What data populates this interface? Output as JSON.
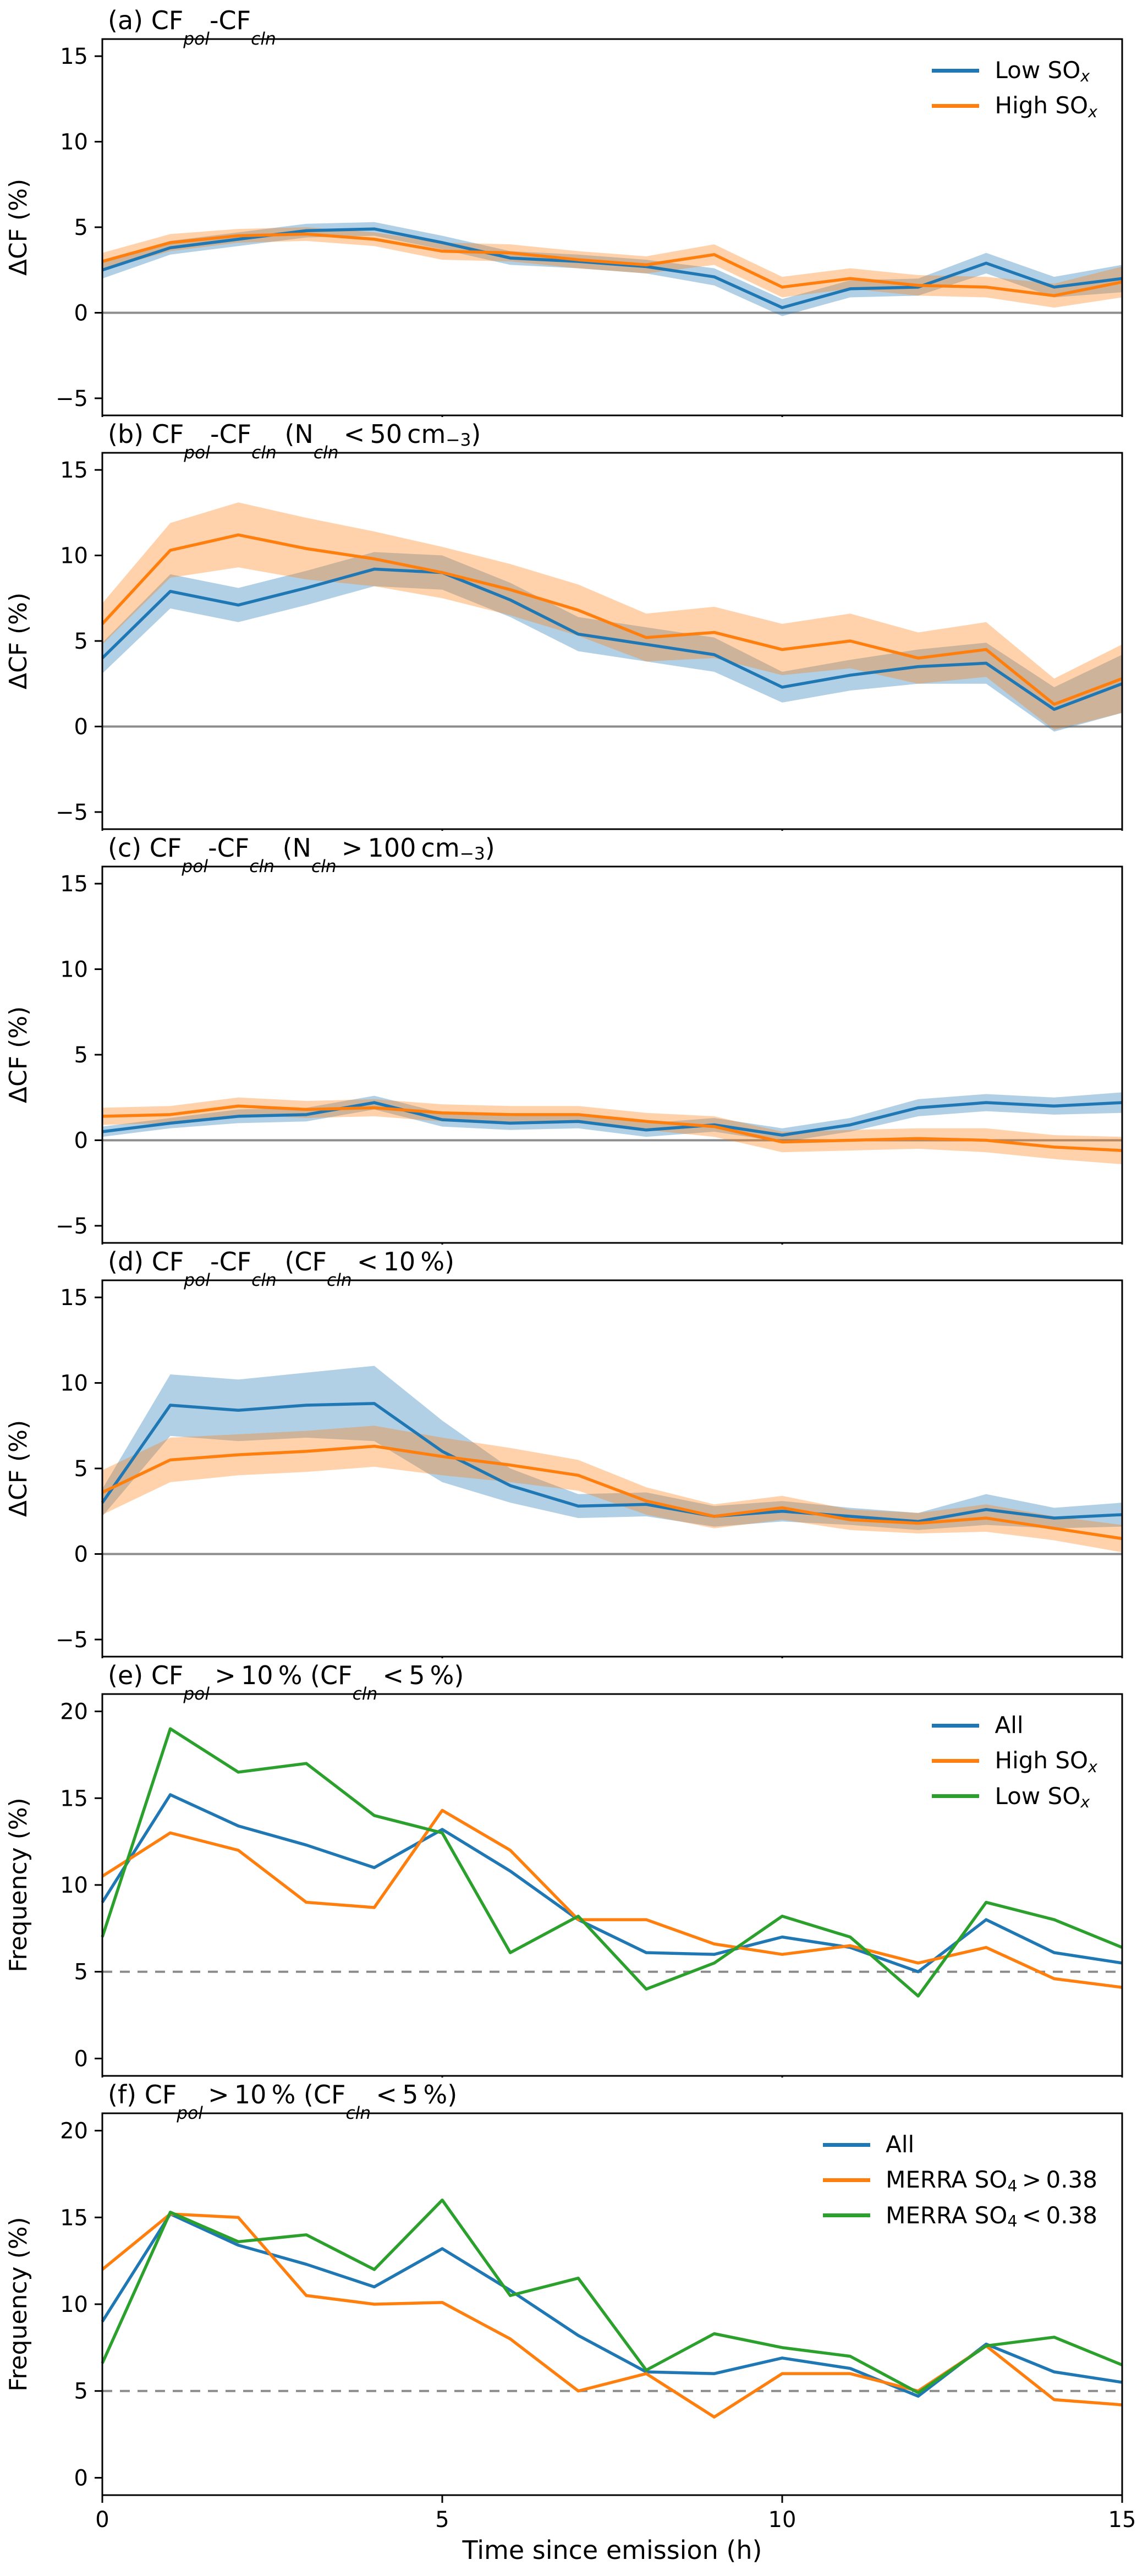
{
  "figure": {
    "xlabel": "Time since emission (h)",
    "x_ticks": [
      0,
      5,
      10,
      15
    ],
    "xlim": [
      0,
      15
    ],
    "x": [
      0,
      1,
      2,
      3,
      4,
      5,
      6,
      7,
      8,
      9,
      10,
      11,
      12,
      13,
      14,
      15
    ],
    "colors": {
      "blue": "#1f77b4",
      "orange": "#ff7f0e",
      "green": "#2ca02c",
      "ref_gray": "#8c8c8c"
    }
  },
  "chart_data": [
    {
      "id": "a",
      "type": "line",
      "title": "(a) CF~pol~-CF~cln~",
      "ylabel": "ΔCF (%)",
      "ylim": [
        -6,
        16
      ],
      "yticks": [
        -5,
        0,
        5,
        10,
        15
      ],
      "ref_line": {
        "y": 0,
        "style": "solid"
      },
      "legend": true,
      "series": [
        {
          "name": "Low SO~x~",
          "color": "#1f77b4",
          "values": [
            2.5,
            3.8,
            4.3,
            4.8,
            4.9,
            4.1,
            3.2,
            3.0,
            2.7,
            2.1,
            0.3,
            1.4,
            1.5,
            2.9,
            1.5,
            2.0
          ],
          "band": [
            0.5,
            0.4,
            0.4,
            0.4,
            0.4,
            0.4,
            0.4,
            0.4,
            0.4,
            0.5,
            0.5,
            0.5,
            0.5,
            0.6,
            0.6,
            0.8
          ]
        },
        {
          "name": "High SO~x~",
          "color": "#ff7f0e",
          "values": [
            3.0,
            4.1,
            4.5,
            4.6,
            4.3,
            3.6,
            3.5,
            3.1,
            2.8,
            3.4,
            1.5,
            2.0,
            1.6,
            1.5,
            1.0,
            1.8
          ],
          "band": [
            0.5,
            0.5,
            0.4,
            0.4,
            0.4,
            0.5,
            0.5,
            0.5,
            0.5,
            0.6,
            0.6,
            0.6,
            0.6,
            0.6,
            0.7,
            0.9
          ]
        }
      ]
    },
    {
      "id": "b",
      "type": "line",
      "title": "(b) CF~pol~-CF~cln~ (N~cln~ < 50 cm^−3^)",
      "ylabel": "ΔCF (%)",
      "ylim": [
        -6,
        16
      ],
      "yticks": [
        -5,
        0,
        5,
        10,
        15
      ],
      "ref_line": {
        "y": 0,
        "style": "solid"
      },
      "legend": false,
      "series": [
        {
          "name": "Low SO~x~",
          "color": "#1f77b4",
          "values": [
            4.0,
            7.9,
            7.1,
            8.1,
            9.2,
            9.0,
            7.4,
            5.4,
            4.8,
            4.2,
            2.3,
            3.0,
            3.5,
            3.7,
            1.0,
            2.5
          ],
          "band": [
            0.9,
            1.0,
            1.0,
            1.0,
            1.0,
            1.0,
            1.0,
            1.0,
            1.0,
            1.0,
            0.9,
            0.9,
            1.0,
            1.2,
            1.3,
            1.7
          ]
        },
        {
          "name": "High SO~x~",
          "color": "#ff7f0e",
          "values": [
            6.0,
            10.3,
            11.2,
            10.4,
            9.8,
            9.0,
            8.0,
            6.8,
            5.2,
            5.5,
            4.5,
            5.0,
            4.0,
            4.5,
            1.3,
            2.8
          ],
          "band": [
            1.2,
            1.6,
            1.9,
            1.8,
            1.6,
            1.5,
            1.5,
            1.5,
            1.4,
            1.5,
            1.5,
            1.6,
            1.5,
            1.6,
            1.5,
            2.0
          ]
        }
      ]
    },
    {
      "id": "c",
      "type": "line",
      "title": "(c) CF~pol~-CF~cln~ (N~cln~ > 100 cm^−3^)",
      "ylabel": "ΔCF (%)",
      "ylim": [
        -6,
        16
      ],
      "yticks": [
        -5,
        0,
        5,
        10,
        15
      ],
      "ref_line": {
        "y": 0,
        "style": "solid"
      },
      "legend": false,
      "series": [
        {
          "name": "Low SO~x~",
          "color": "#1f77b4",
          "values": [
            0.5,
            1.0,
            1.4,
            1.5,
            2.2,
            1.2,
            1.0,
            1.1,
            0.6,
            0.9,
            0.3,
            0.9,
            1.9,
            2.2,
            2.0,
            2.2
          ],
          "band": [
            0.3,
            0.3,
            0.4,
            0.4,
            0.4,
            0.4,
            0.4,
            0.4,
            0.4,
            0.4,
            0.4,
            0.4,
            0.5,
            0.5,
            0.5,
            0.6
          ]
        },
        {
          "name": "High SO~x~",
          "color": "#ff7f0e",
          "values": [
            1.4,
            1.5,
            2.0,
            1.8,
            1.9,
            1.6,
            1.5,
            1.5,
            1.1,
            0.8,
            -0.1,
            0.0,
            0.1,
            0.0,
            -0.4,
            -0.6
          ],
          "band": [
            0.5,
            0.5,
            0.5,
            0.5,
            0.5,
            0.5,
            0.5,
            0.5,
            0.5,
            0.6,
            0.6,
            0.6,
            0.6,
            0.7,
            0.7,
            0.8
          ]
        }
      ]
    },
    {
      "id": "d",
      "type": "line",
      "title": "(d) CF~pol~-CF~cln~ (CF~cln~ < 10 %)",
      "ylabel": "ΔCF (%)",
      "ylim": [
        -6,
        16
      ],
      "yticks": [
        -5,
        0,
        5,
        10,
        15
      ],
      "ref_line": {
        "y": 0,
        "style": "solid"
      },
      "legend": false,
      "series": [
        {
          "name": "Low SO~x~",
          "color": "#1f77b4",
          "values": [
            3.0,
            8.7,
            8.4,
            8.7,
            8.8,
            6.0,
            4.0,
            2.8,
            2.9,
            2.2,
            2.5,
            2.2,
            1.9,
            2.6,
            2.1,
            2.3
          ],
          "band": [
            0.8,
            1.8,
            1.8,
            1.9,
            2.2,
            1.8,
            1.0,
            0.7,
            0.7,
            0.6,
            0.6,
            0.5,
            0.5,
            0.9,
            0.6,
            0.7
          ]
        },
        {
          "name": "High SO~x~",
          "color": "#ff7f0e",
          "values": [
            3.6,
            5.5,
            5.8,
            6.0,
            6.3,
            5.7,
            5.2,
            4.6,
            3.1,
            2.2,
            2.7,
            2.0,
            1.8,
            2.1,
            1.5,
            0.9
          ],
          "band": [
            1.3,
            1.3,
            1.2,
            1.2,
            1.2,
            1.1,
            1.0,
            0.9,
            0.8,
            0.7,
            0.7,
            0.6,
            0.6,
            0.8,
            0.7,
            0.8
          ]
        }
      ]
    },
    {
      "id": "e",
      "type": "line",
      "title": "(e) CF~pol~ > 10 % (CF~cln~ < 5 %)",
      "ylabel": "Frequency (%)",
      "ylim": [
        -1,
        21
      ],
      "yticks": [
        0,
        5,
        10,
        15,
        20
      ],
      "ref_line": {
        "y": 5,
        "style": "dashed"
      },
      "legend": true,
      "series": [
        {
          "name": "All",
          "color": "#1f77b4",
          "values": [
            9.0,
            15.2,
            13.4,
            12.3,
            11.0,
            13.2,
            10.8,
            8.0,
            6.1,
            6.0,
            7.0,
            6.4,
            5.0,
            8.0,
            6.1,
            5.5
          ]
        },
        {
          "name": "High SO~x~",
          "color": "#ff7f0e",
          "values": [
            10.5,
            13.0,
            12.0,
            9.0,
            8.7,
            14.3,
            12.0,
            8.0,
            8.0,
            6.6,
            6.0,
            6.5,
            5.5,
            6.4,
            4.6,
            4.1
          ]
        },
        {
          "name": "Low SO~x~",
          "color": "#2ca02c",
          "values": [
            7.0,
            19.0,
            16.5,
            17.0,
            14.0,
            13.0,
            6.1,
            8.2,
            4.0,
            5.5,
            8.2,
            7.0,
            3.6,
            9.0,
            8.0,
            6.4
          ]
        }
      ]
    },
    {
      "id": "f",
      "type": "line",
      "title": "(f) CF~pol~ > 10 % (CF~cln~ < 5 %)",
      "ylabel": "Frequency (%)",
      "ylim": [
        -1,
        21
      ],
      "yticks": [
        0,
        5,
        10,
        15,
        20
      ],
      "ref_line": {
        "y": 5,
        "style": "dashed"
      },
      "legend": true,
      "series": [
        {
          "name": "All",
          "color": "#1f77b4",
          "values": [
            9.0,
            15.2,
            13.4,
            12.3,
            11.0,
            13.2,
            10.8,
            8.2,
            6.1,
            6.0,
            6.9,
            6.3,
            4.7,
            7.7,
            6.1,
            5.5
          ]
        },
        {
          "name": "MERRA SO~4~ > 0.38",
          "color": "#ff7f0e",
          "values": [
            12.0,
            15.2,
            15.0,
            10.5,
            10.0,
            10.1,
            8.0,
            5.0,
            6.0,
            3.5,
            6.0,
            6.0,
            5.0,
            7.6,
            4.5,
            4.2
          ]
        },
        {
          "name": "MERRA SO~4~ < 0.38",
          "color": "#2ca02c",
          "values": [
            6.6,
            15.3,
            13.6,
            14.0,
            12.0,
            16.0,
            10.5,
            11.5,
            6.2,
            8.3,
            7.5,
            7.0,
            4.9,
            7.6,
            8.1,
            6.5
          ]
        }
      ]
    }
  ]
}
